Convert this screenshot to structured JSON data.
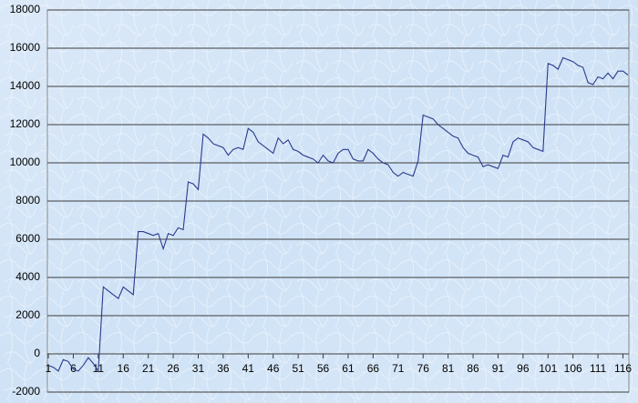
{
  "chart_data": {
    "type": "line",
    "x": [
      1,
      2,
      3,
      4,
      5,
      6,
      7,
      8,
      9,
      10,
      11,
      12,
      13,
      14,
      15,
      16,
      17,
      18,
      19,
      20,
      21,
      22,
      23,
      24,
      25,
      26,
      27,
      28,
      29,
      30,
      31,
      32,
      33,
      34,
      35,
      36,
      37,
      38,
      39,
      40,
      41,
      42,
      43,
      44,
      45,
      46,
      47,
      48,
      49,
      50,
      51,
      52,
      53,
      54,
      55,
      56,
      57,
      58,
      59,
      60,
      61,
      62,
      63,
      64,
      65,
      66,
      67,
      68,
      69,
      70,
      71,
      72,
      73,
      74,
      75,
      76,
      77,
      78,
      79,
      80,
      81,
      82,
      83,
      84,
      85,
      86,
      87,
      88,
      89,
      90,
      91,
      92,
      93,
      94,
      95,
      96,
      97,
      98,
      99,
      100,
      101,
      102,
      103,
      104,
      105,
      106,
      107,
      108,
      109,
      110,
      111,
      112,
      113,
      114,
      115,
      116,
      117
    ],
    "series": [
      {
        "color": "#2b3a8c",
        "values": [
          -600,
          -700,
          -900,
          -300,
          -400,
          -800,
          -900,
          -600,
          -200,
          -500,
          -900,
          3500,
          3300,
          3100,
          2900,
          3500,
          3300,
          3100,
          6400,
          6400,
          6300,
          6200,
          6300,
          5500,
          6300,
          6200,
          6600,
          6500,
          9000,
          8900,
          8600,
          11500,
          11300,
          11000,
          10900,
          10800,
          10400,
          10700,
          10800,
          10700,
          11800,
          11600,
          11100,
          10900,
          10700,
          10500,
          11300,
          11000,
          11200,
          10700,
          10600,
          10400,
          10300,
          10200,
          10000,
          10400,
          10100,
          10000,
          10500,
          10700,
          10700,
          10200,
          10100,
          10100,
          10700,
          10500,
          10200,
          10000,
          9900,
          9500,
          9300,
          9500,
          9400,
          9300,
          10100,
          12500,
          12400,
          12300,
          12000,
          11800,
          11600,
          11400,
          11300,
          10800,
          10500,
          10400,
          10300,
          9800,
          9900,
          9800,
          9700,
          10400,
          10300,
          11100,
          11300,
          11200,
          11100,
          10800,
          10700,
          10600,
          15200,
          15100,
          14900,
          15500,
          15400,
          15300,
          15100,
          15000,
          14200,
          14100,
          14500,
          14400,
          14700,
          14400,
          14800,
          14800,
          14600
        ]
      }
    ],
    "xlim": [
      1,
      117
    ],
    "xticks": [
      1,
      6,
      11,
      16,
      21,
      26,
      31,
      36,
      41,
      46,
      51,
      56,
      61,
      66,
      71,
      76,
      81,
      86,
      91,
      96,
      101,
      106,
      111,
      116
    ],
    "ylim": [
      -2000,
      18000
    ],
    "yticks": [
      -2000,
      0,
      2000,
      4000,
      6000,
      8000,
      10000,
      12000,
      14000,
      16000,
      18000
    ],
    "grid": true
  }
}
